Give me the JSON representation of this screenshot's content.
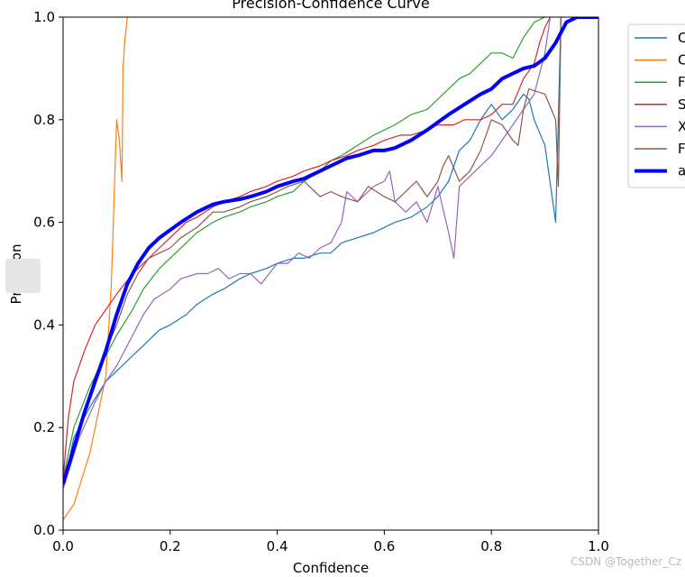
{
  "chart_data": {
    "type": "line",
    "title": "Precision-Confidence Curve",
    "xlabel": "Confidence",
    "ylabel": "Precision",
    "xlim": [
      0.0,
      1.0
    ],
    "ylim": [
      0.0,
      1.0
    ],
    "xticks": [
      "0.0",
      "0.2",
      "0.4",
      "0.6",
      "0.8",
      "1.0"
    ],
    "yticks": [
      "0.0",
      "0.2",
      "0.4",
      "0.6",
      "0.8",
      "1.0"
    ],
    "grid": false,
    "legend_position": "outside-right",
    "series": [
      {
        "name": "C",
        "color": "#1f77b4",
        "width": 1.2,
        "x": [
          0.0,
          0.02,
          0.05,
          0.08,
          0.1,
          0.13,
          0.15,
          0.18,
          0.2,
          0.23,
          0.25,
          0.28,
          0.3,
          0.33,
          0.35,
          0.38,
          0.4,
          0.43,
          0.45,
          0.48,
          0.5,
          0.52,
          0.55,
          0.58,
          0.6,
          0.62,
          0.65,
          0.68,
          0.7,
          0.72,
          0.74,
          0.76,
          0.78,
          0.8,
          0.82,
          0.84,
          0.86,
          0.87,
          0.88,
          0.9,
          0.92,
          0.93,
          0.935
        ],
        "y": [
          0.08,
          0.18,
          0.24,
          0.29,
          0.31,
          0.34,
          0.36,
          0.39,
          0.4,
          0.42,
          0.44,
          0.46,
          0.47,
          0.49,
          0.5,
          0.51,
          0.52,
          0.53,
          0.53,
          0.54,
          0.54,
          0.56,
          0.57,
          0.58,
          0.59,
          0.6,
          0.61,
          0.63,
          0.65,
          0.68,
          0.74,
          0.76,
          0.8,
          0.83,
          0.8,
          0.82,
          0.85,
          0.84,
          0.8,
          0.75,
          0.6,
          1.0,
          1.0
        ]
      },
      {
        "name": "C",
        "color": "#ff7f0e",
        "width": 1.2,
        "x": [
          0.0,
          0.02,
          0.05,
          0.08,
          0.09,
          0.1,
          0.105,
          0.11,
          0.112,
          0.115,
          0.12
        ],
        "y": [
          0.02,
          0.05,
          0.15,
          0.3,
          0.48,
          0.8,
          0.76,
          0.68,
          0.9,
          0.95,
          1.0
        ]
      },
      {
        "name": "F",
        "color": "#2ca02c",
        "width": 1.2,
        "x": [
          0.0,
          0.02,
          0.05,
          0.08,
          0.1,
          0.13,
          0.15,
          0.18,
          0.2,
          0.23,
          0.25,
          0.28,
          0.3,
          0.33,
          0.35,
          0.38,
          0.4,
          0.43,
          0.45,
          0.48,
          0.5,
          0.52,
          0.55,
          0.58,
          0.6,
          0.62,
          0.65,
          0.68,
          0.7,
          0.72,
          0.74,
          0.76,
          0.78,
          0.8,
          0.82,
          0.84,
          0.86,
          0.88,
          0.9
        ],
        "y": [
          0.1,
          0.2,
          0.28,
          0.34,
          0.38,
          0.43,
          0.47,
          0.51,
          0.53,
          0.56,
          0.58,
          0.6,
          0.61,
          0.62,
          0.63,
          0.64,
          0.65,
          0.66,
          0.68,
          0.7,
          0.72,
          0.73,
          0.75,
          0.77,
          0.78,
          0.79,
          0.81,
          0.82,
          0.84,
          0.86,
          0.88,
          0.89,
          0.91,
          0.93,
          0.93,
          0.92,
          0.96,
          0.99,
          1.0
        ]
      },
      {
        "name": "S",
        "color": "#d62728",
        "width": 1.2,
        "x": [
          0.0,
          0.01,
          0.02,
          0.04,
          0.06,
          0.08,
          0.1,
          0.13,
          0.15,
          0.18,
          0.2,
          0.23,
          0.25,
          0.28,
          0.3,
          0.33,
          0.35,
          0.38,
          0.4,
          0.43,
          0.45,
          0.48,
          0.5,
          0.53,
          0.55,
          0.58,
          0.6,
          0.63,
          0.65,
          0.68,
          0.7,
          0.73,
          0.75,
          0.78,
          0.8,
          0.82,
          0.84,
          0.86,
          0.88,
          0.89,
          0.9,
          0.91
        ],
        "y": [
          0.1,
          0.22,
          0.29,
          0.35,
          0.4,
          0.43,
          0.46,
          0.5,
          0.52,
          0.55,
          0.57,
          0.6,
          0.61,
          0.63,
          0.64,
          0.65,
          0.66,
          0.67,
          0.68,
          0.69,
          0.7,
          0.71,
          0.72,
          0.73,
          0.74,
          0.75,
          0.76,
          0.77,
          0.77,
          0.78,
          0.79,
          0.79,
          0.8,
          0.8,
          0.81,
          0.83,
          0.83,
          0.88,
          0.91,
          0.95,
          0.98,
          1.0
        ]
      },
      {
        "name": "X",
        "color": "#9467bd",
        "width": 1.2,
        "x": [
          0.0,
          0.03,
          0.06,
          0.08,
          0.1,
          0.13,
          0.15,
          0.17,
          0.2,
          0.22,
          0.25,
          0.27,
          0.29,
          0.31,
          0.33,
          0.35,
          0.37,
          0.4,
          0.42,
          0.44,
          0.46,
          0.48,
          0.5,
          0.52,
          0.53,
          0.55,
          0.58,
          0.6,
          0.61,
          0.62,
          0.64,
          0.66,
          0.68,
          0.7,
          0.72,
          0.73,
          0.74,
          0.77,
          0.8,
          0.82,
          0.84,
          0.86,
          0.88,
          0.9,
          0.91
        ],
        "y": [
          0.08,
          0.18,
          0.25,
          0.29,
          0.32,
          0.38,
          0.42,
          0.45,
          0.47,
          0.49,
          0.5,
          0.5,
          0.51,
          0.49,
          0.5,
          0.5,
          0.48,
          0.52,
          0.52,
          0.54,
          0.53,
          0.55,
          0.56,
          0.6,
          0.66,
          0.64,
          0.67,
          0.68,
          0.7,
          0.64,
          0.62,
          0.64,
          0.6,
          0.67,
          0.58,
          0.53,
          0.67,
          0.7,
          0.73,
          0.76,
          0.79,
          0.82,
          0.85,
          0.93,
          1.0
        ]
      },
      {
        "name": "F",
        "color": "#8c564b",
        "width": 1.2,
        "x": [
          0.0,
          0.03,
          0.06,
          0.08,
          0.1,
          0.12,
          0.14,
          0.16,
          0.18,
          0.2,
          0.22,
          0.25,
          0.28,
          0.3,
          0.33,
          0.35,
          0.38,
          0.4,
          0.42,
          0.45,
          0.48,
          0.5,
          0.52,
          0.55,
          0.57,
          0.6,
          0.62,
          0.64,
          0.66,
          0.68,
          0.7,
          0.71,
          0.72,
          0.74,
          0.76,
          0.78,
          0.8,
          0.82,
          0.84,
          0.85,
          0.86,
          0.87,
          0.9,
          0.92,
          0.925,
          0.93
        ],
        "y": [
          0.1,
          0.2,
          0.3,
          0.35,
          0.4,
          0.46,
          0.5,
          0.53,
          0.54,
          0.55,
          0.57,
          0.59,
          0.62,
          0.62,
          0.63,
          0.64,
          0.65,
          0.66,
          0.67,
          0.68,
          0.65,
          0.66,
          0.65,
          0.64,
          0.67,
          0.65,
          0.64,
          0.66,
          0.68,
          0.65,
          0.68,
          0.71,
          0.73,
          0.68,
          0.7,
          0.74,
          0.8,
          0.79,
          0.76,
          0.75,
          0.82,
          0.86,
          0.85,
          0.8,
          0.67,
          1.0
        ]
      },
      {
        "name": "a",
        "color": "#0000ff",
        "width": 4.0,
        "x": [
          0.0,
          0.02,
          0.04,
          0.06,
          0.08,
          0.1,
          0.12,
          0.14,
          0.16,
          0.18,
          0.2,
          0.22,
          0.25,
          0.28,
          0.3,
          0.33,
          0.35,
          0.38,
          0.4,
          0.43,
          0.45,
          0.48,
          0.5,
          0.53,
          0.55,
          0.58,
          0.6,
          0.62,
          0.65,
          0.68,
          0.7,
          0.72,
          0.75,
          0.78,
          0.8,
          0.82,
          0.84,
          0.86,
          0.88,
          0.9,
          0.92,
          0.94,
          0.96,
          1.0
        ],
        "y": [
          0.09,
          0.16,
          0.23,
          0.29,
          0.35,
          0.42,
          0.48,
          0.52,
          0.55,
          0.57,
          0.585,
          0.6,
          0.62,
          0.635,
          0.64,
          0.645,
          0.65,
          0.66,
          0.67,
          0.68,
          0.685,
          0.7,
          0.71,
          0.725,
          0.73,
          0.74,
          0.74,
          0.745,
          0.76,
          0.78,
          0.795,
          0.81,
          0.83,
          0.85,
          0.86,
          0.88,
          0.89,
          0.9,
          0.905,
          0.92,
          0.95,
          0.99,
          1.0,
          1.0
        ]
      }
    ]
  },
  "watermark": "CSDN @Together_Cz"
}
